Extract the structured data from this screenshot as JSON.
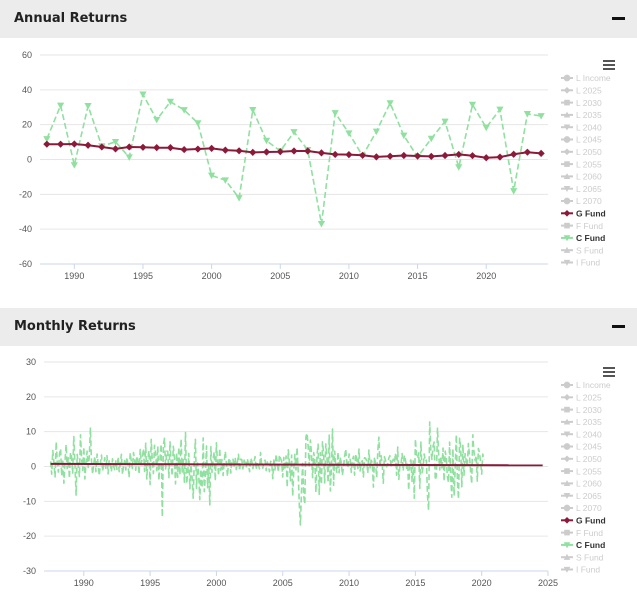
{
  "colors": {
    "g_fund": "#8b1a3a",
    "c_fund": "#90e0a0",
    "legend_inactive": "#cccccc",
    "grid": "#e6e6e6",
    "header_bg": "#ececec"
  },
  "legend_items": [
    {
      "name": "L Income",
      "marker": "circle",
      "active": false
    },
    {
      "name": "L 2025",
      "marker": "diamond",
      "active": false
    },
    {
      "name": "L 2030",
      "marker": "square",
      "active": false
    },
    {
      "name": "L 2035",
      "marker": "triangle",
      "active": false
    },
    {
      "name": "L 2040",
      "marker": "triangle-down",
      "active": false
    },
    {
      "name": "L 2045",
      "marker": "circle",
      "active": false
    },
    {
      "name": "L 2050",
      "marker": "diamond",
      "active": false
    },
    {
      "name": "L 2055",
      "marker": "square",
      "active": false
    },
    {
      "name": "L 2060",
      "marker": "triangle",
      "active": false
    },
    {
      "name": "L 2065",
      "marker": "triangle-down",
      "active": false
    },
    {
      "name": "L 2070",
      "marker": "circle",
      "active": false
    },
    {
      "name": "G Fund",
      "marker": "diamond",
      "active": true
    },
    {
      "name": "F Fund",
      "marker": "square",
      "active": false
    },
    {
      "name": "C Fund",
      "marker": "triangle-down",
      "active": true
    },
    {
      "name": "S Fund",
      "marker": "triangle",
      "active": false
    },
    {
      "name": "I Fund",
      "marker": "triangle-down",
      "active": false
    }
  ],
  "chart_data": [
    {
      "title": "Annual Returns",
      "type": "line",
      "xlim": [
        1987.5,
        2024.5
      ],
      "ylim": [
        -60,
        60
      ],
      "yticks": [
        60,
        40,
        20,
        0,
        -20,
        -40,
        -60
      ],
      "xticks": [
        1990,
        1995,
        2000,
        2005,
        2010,
        2015,
        2020
      ],
      "grid": true,
      "legend_position": "right",
      "x": [
        1988,
        1989,
        1990,
        1991,
        1992,
        1993,
        1994,
        1995,
        1996,
        1997,
        1998,
        1999,
        2000,
        2001,
        2002,
        2003,
        2004,
        2005,
        2006,
        2007,
        2008,
        2009,
        2010,
        2011,
        2012,
        2013,
        2014,
        2015,
        2016,
        2017,
        2018,
        2019,
        2020,
        2021,
        2022,
        2023,
        2024
      ],
      "series": [
        {
          "name": "G Fund",
          "style": "solid",
          "marker": "diamond",
          "values": [
            8.8,
            8.8,
            8.9,
            8.2,
            7.2,
            6.1,
            7.2,
            7.0,
            6.8,
            6.8,
            5.7,
            6.0,
            6.4,
            5.4,
            5.0,
            4.1,
            4.3,
            4.5,
            4.9,
            4.9,
            3.8,
            2.9,
            2.8,
            2.4,
            1.5,
            1.9,
            2.3,
            2.0,
            1.8,
            2.3,
            2.9,
            2.2,
            1.0,
            1.4,
            3.0,
            4.2,
            3.5
          ]
        },
        {
          "name": "C Fund",
          "style": "dashed",
          "marker": "triangle-down",
          "values": [
            11.8,
            31.0,
            -3.2,
            30.8,
            7.7,
            10.1,
            1.3,
            37.4,
            22.8,
            33.2,
            28.4,
            20.9,
            -9.2,
            -11.9,
            -22.1,
            28.5,
            10.8,
            4.9,
            15.8,
            5.5,
            -37.0,
            26.7,
            15.1,
            2.1,
            16.1,
            32.4,
            13.8,
            1.5,
            12.0,
            21.8,
            -4.4,
            31.5,
            18.3,
            28.7,
            -18.1,
            26.2,
            25.0
          ]
        }
      ]
    },
    {
      "title": "Monthly Returns",
      "type": "line",
      "xlim": [
        1987,
        2025
      ],
      "ylim": [
        -30,
        30
      ],
      "yticks": [
        30,
        20,
        10,
        0,
        -10,
        -20,
        -30
      ],
      "xticks": [
        1990,
        1995,
        2000,
        2005,
        2010,
        2015,
        2020,
        2025
      ],
      "grid": true,
      "legend_position": "right",
      "start_year": 1987.5,
      "series": [
        {
          "name": "G Fund",
          "style": "solid",
          "start": 0.75,
          "end": 0.35
        },
        {
          "name": "C Fund",
          "style": "dashed",
          "values": [
            1.5,
            -2.2,
            4.6,
            1.2,
            -3.0,
            7.1,
            0.9,
            -1.6,
            3.7,
            5.1,
            -2.7,
            2.0,
            -4.8,
            1.5,
            6.3,
            -0.6,
            2.5,
            -3.4,
            4.0,
            2.7,
            -1.9,
            8.6,
            1.0,
            -8.2,
            3.5,
            0.3,
            -2.9,
            9.1,
            2.2,
            -1.1,
            5.6,
            -3.6,
            1.0,
            4.4,
            -0.3,
            2.9,
            11.0,
            1.5,
            -2.2,
            0.7,
            2.9,
            -1.5,
            3.6,
            0.4,
            -2.6,
            1.0,
            3.3,
            -1.3,
            0.5,
            2.5,
            -0.7,
            3.1,
            -2.1,
            1.8,
            0.9,
            -1.5,
            2.2,
            0.1,
            -0.9,
            1.6,
            -0.8,
            2.7,
            -1.5,
            1.1,
            3.5,
            -2.3,
            0.4,
            1.7,
            -1.0,
            2.6,
            0.7,
            -3.1,
            3.9,
            1.4,
            -0.6,
            4.0,
            2.0,
            -1.1,
            3.0,
            1.9,
            -2.2,
            4.9,
            0.8,
            2.8,
            5.1,
            -1.4,
            6.7,
            -3.6,
            2.2,
            4.5,
            -5.2,
            7.8,
            1.6,
            -2.0,
            6.1,
            3.8,
            -1.2,
            5.8,
            -4.0,
            2.7,
            6.4,
            -14.5,
            6.3,
            8.1,
            -0.7,
            4.4,
            4.3,
            -3.2,
            7.1,
            1.4,
            -2.7,
            5.8,
            2.9,
            -5.0,
            3.9,
            -3.1,
            5.6,
            -2.4,
            7.9,
            -1.6,
            2.0,
            -4.5,
            9.8,
            -5.0,
            -2.1,
            3.8,
            -6.4,
            0.5,
            -3.1,
            -9.1,
            1.8,
            7.8,
            -6.3,
            1.0,
            -2.3,
            -9.5,
            -0.8,
            -6.1,
            8.2,
            -7.2,
            -2.7,
            5.9,
            -6.1,
            0.5,
            -11.0,
            5.7,
            -1.7,
            2.1,
            4.2,
            -4.1,
            6.8,
            1.3,
            -2.6,
            5.2,
            -1.1,
            2.0,
            -2.6,
            1.3,
            4.3,
            0.9,
            -2.8,
            1.7,
            2.4,
            -1.9,
            1.7,
            2.1,
            -0.2,
            2.5,
            -0.9,
            1.2,
            3.5,
            -1.2,
            2.1,
            2.0,
            -0.7,
            1.8,
            1.1,
            -0.1,
            2.2,
            0.5,
            -1.5,
            2.4,
            1.6,
            -0.6,
            1.4,
            2.8,
            -0.9,
            1.3,
            0.6,
            -0.7,
            4.0,
            0.4,
            -0.5,
            1.6,
            1.8,
            -1.2,
            1.3,
            0.2,
            -1.5,
            1.5,
            1.1,
            -3.5,
            2.3,
            -1.0,
            3.6,
            1.3,
            -1.6,
            3.3,
            2.4,
            1.5,
            -3.0,
            2.6,
            -1.0,
            3.0,
            -6.0,
            4.8,
            1.1,
            -4.1,
            3.3,
            -8.5,
            -0.9,
            3.5,
            -1.0,
            5.5,
            -1.5,
            -11.0,
            -16.8,
            -7.1,
            0.9,
            -8.4,
            -10.8,
            8.5,
            9.6,
            5.6,
            0.2,
            7.6,
            3.6,
            -3.2,
            4.0,
            1.9,
            -7.4,
            3.1,
            6.4,
            -8.0,
            4.0,
            -5.2,
            7.1,
            3.7,
            -4.7,
            6.5,
            3.1,
            -4.6,
            9.0,
            -7.0,
            -0.8,
            10.8,
            -5.4,
            4.4,
            -0.1,
            -1.7,
            4.2,
            -1.8,
            2.7,
            1.0,
            -2.5,
            -0.2,
            2.8,
            5.0,
            1.2,
            -0.3,
            3.6,
            2.0,
            -1.7,
            1.8,
            2.9,
            -2.5,
            3.6,
            1.9,
            -0.6,
            5.0,
            -1.3,
            0.9,
            1.7,
            -3.0,
            2.5,
            2.4,
            1.5,
            -1.9,
            4.7,
            -0.4,
            1.8,
            1.0,
            -5.9,
            2.7,
            0.6,
            -3.1,
            4.5,
            8.4,
            -0.2,
            3.1,
            0.7,
            -4.8,
            2.8,
            1.8,
            -0.1,
            0.8,
            2.4,
            3.1,
            0.2,
            1.4,
            2.1,
            1.0,
            3.8,
            -2.5,
            5.6,
            -3.7,
            0.3,
            0.5,
            3.7,
            -1.2,
            3.2,
            2.0,
            -0.5,
            1.1,
            -6.8,
            1.3,
            1.9,
            -4.3,
            1.8,
            -9.1,
            7.9,
            2.9,
            2.4,
            3.9,
            -6.3,
            7.0,
            -1.8,
            -0.2,
            3.6,
            1.5,
            1.8,
            -8.4,
            -12.5,
            12.8,
            4.8,
            2.0,
            5.9,
            7.0,
            -3.9,
            -2.7,
            11.0,
            3.8,
            -1.0,
            2.8,
            -0.4,
            5.3,
            -4.2,
            4.4,
            2.3,
            -2.9,
            -4.6,
            7.0,
            -2.9,
            -8.8,
            5.1,
            -8.4,
            -0.5,
            9.1,
            -4.1,
            -9.3,
            8.1,
            5.5,
            -5.8,
            6.3,
            -2.5,
            3.7,
            1.6,
            0.1,
            6.6,
            3.2,
            -1.6,
            -4.9,
            9.1,
            4.5,
            1.7,
            3.1,
            -4.2,
            5.2,
            3.9,
            1.3,
            -2.2,
            3.6,
            1.9
          ]
        }
      ]
    }
  ]
}
